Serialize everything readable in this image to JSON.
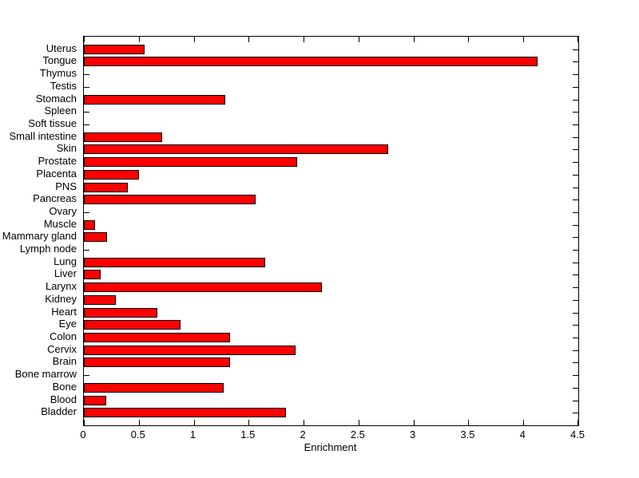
{
  "chart_data": {
    "type": "bar",
    "orientation": "horizontal",
    "title": "",
    "xlabel": "Enrichment",
    "ylabel": "",
    "xlim": [
      0,
      4.5
    ],
    "x_ticks": [
      0,
      0.5,
      1,
      1.5,
      2,
      2.5,
      3,
      3.5,
      4,
      4.5
    ],
    "x_tick_labels": [
      "0",
      "0.5",
      "1",
      "1.5",
      "2",
      "2.5",
      "3",
      "3.5",
      "4",
      "4.5"
    ],
    "grid": false,
    "legend_position": "none",
    "bar_face_color": "#FF0000",
    "bar_edge_color": "#000000",
    "axis_color": "#000000",
    "background_color": "#FFFFFF",
    "categories": [
      "Uterus",
      "Tongue",
      "Thymus",
      "Testis",
      "Stomach",
      "Spleen",
      "Soft tissue",
      "Small intestine",
      "Skin",
      "Prostate",
      "Placenta",
      "PNS",
      "Pancreas",
      "Ovary",
      "Muscle",
      "Mammary gland",
      "Lymph node",
      "Lung",
      "Liver",
      "Larynx",
      "Kidney",
      "Heart",
      "Eye",
      "Colon",
      "Cervix",
      "Brain",
      "Bone marrow",
      "Bone",
      "Blood",
      "Bladder"
    ],
    "values": [
      0.55,
      4.13,
      0,
      0,
      1.29,
      0,
      0,
      0.71,
      2.77,
      1.94,
      0.5,
      0.4,
      1.56,
      0,
      0.1,
      0.21,
      0,
      1.65,
      0.15,
      2.17,
      0.29,
      0.67,
      0.88,
      1.33,
      1.93,
      1.33,
      0,
      1.27,
      0.2,
      1.84
    ]
  }
}
